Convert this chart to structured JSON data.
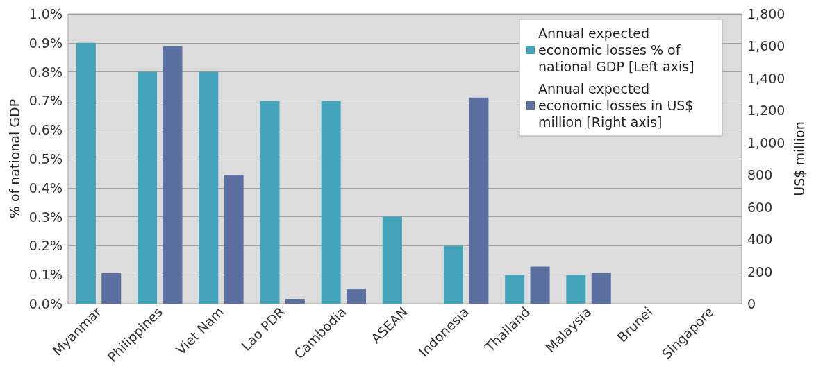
{
  "chart_data": {
    "type": "bar",
    "ylabel": "% of national GDP",
    "y2label": "US$ million",
    "categories": [
      "Myanmar",
      "Philippines",
      "Viet Nam",
      "Lao PDR",
      "Cambodia",
      "ASEAN",
      "Indonesia",
      "Thailand",
      "Malaysia",
      "Brunei",
      "Singapore"
    ],
    "series": [
      {
        "name": "Annual expected economic losses % of national GDP [Left axis]",
        "color": "#43a3b8",
        "values": [
          0.9,
          0.8,
          0.8,
          0.7,
          0.7,
          0.3,
          0.2,
          0.1,
          0.1,
          0,
          0
        ]
      },
      {
        "name": "Annual expected economic losses in US$ million [Right axis]",
        "color": "#5b6fa0",
        "axis": "y2",
        "values": [
          190,
          1600,
          800,
          30,
          90,
          null,
          1280,
          230,
          190,
          0,
          0
        ]
      }
    ],
    "ylim": [
      0,
      1.0
    ],
    "yticks": [
      {
        "value": 0,
        "label": "0.0%"
      },
      {
        "value": 0.1,
        "label": "0.1%"
      },
      {
        "value": 0.2,
        "label": "0.2%"
      },
      {
        "value": 0.3,
        "label": "0.3%"
      },
      {
        "value": 0.4,
        "label": "0.4%"
      },
      {
        "value": 0.5,
        "label": "0.5%"
      },
      {
        "value": 0.6,
        "label": "0.6%"
      },
      {
        "value": 0.7,
        "label": "0.7%"
      },
      {
        "value": 0.8,
        "label": "0.8%"
      },
      {
        "value": 0.9,
        "label": "0.9%"
      },
      {
        "value": 1.0,
        "label": "1.0%"
      }
    ],
    "y2lim": [
      0,
      1800
    ],
    "y2ticks": [
      0,
      200,
      400,
      600,
      800,
      {
        "value": 1000,
        "label": "1,000"
      },
      {
        "value": 1200,
        "label": "1,200"
      },
      {
        "value": 1400,
        "label": "1,400"
      },
      {
        "value": 1600,
        "label": "1,600"
      },
      {
        "value": 1800,
        "label": "1,800"
      }
    ],
    "grid": "y",
    "legend": "top right"
  }
}
